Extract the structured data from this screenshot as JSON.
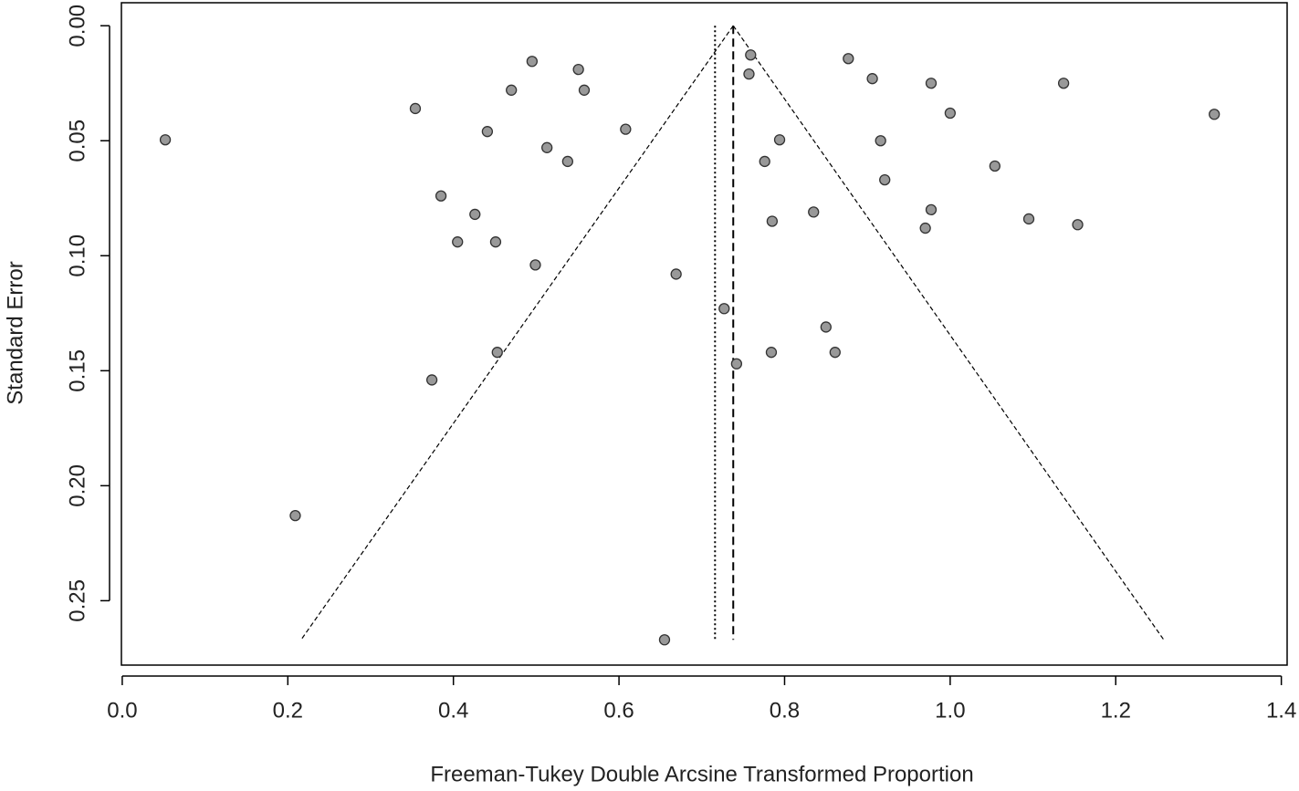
{
  "chart_data": {
    "type": "scatter",
    "x_label": "Freeman-Tukey Double Arcsine Transformed Proportion",
    "y_label": "Standard Error",
    "xlim": [
      -0.001,
      1.407
    ],
    "ylim": [
      -0.01,
      0.278
    ],
    "y_reversed": true,
    "xticks": [
      {
        "value": 0,
        "label": "0.0"
      },
      {
        "value": 0.2,
        "label": "0.2"
      },
      {
        "value": 0.4,
        "label": "0.4"
      },
      {
        "value": 0.6,
        "label": "0.6"
      },
      {
        "value": 0.8,
        "label": "0.8"
      },
      {
        "value": 1,
        "label": "1.0"
      },
      {
        "value": 1.2,
        "label": "1.2"
      },
      {
        "value": 1.4,
        "label": "1.4"
      }
    ],
    "yticks": [
      {
        "value": 0,
        "label": "0.00"
      },
      {
        "value": 0.05,
        "label": "0.05"
      },
      {
        "value": 0.1,
        "label": "0.10"
      },
      {
        "value": 0.15,
        "label": "0.15"
      },
      {
        "value": 0.2,
        "label": "0.20"
      },
      {
        "value": 0.25,
        "label": "0.25"
      }
    ],
    "color": "#999999",
    "x": [
      0.052,
      0.209,
      0.354,
      0.385,
      0.374,
      0.405,
      0.426,
      0.441,
      0.451,
      0.453,
      0.47,
      0.495,
      0.499,
      0.513,
      0.538,
      0.551,
      0.558,
      0.608,
      0.669,
      0.655,
      0.727,
      0.742,
      0.759,
      0.757,
      0.776,
      0.785,
      0.784,
      0.794,
      0.835,
      0.85,
      0.861,
      0.877,
      0.906,
      0.916,
      0.921,
      0.97,
      0.977,
      0.977,
      1.0,
      1.054,
      1.095,
      1.137,
      1.154,
      1.319
    ],
    "values": [
      0.0496,
      0.213,
      0.036,
      0.074,
      0.154,
      0.094,
      0.082,
      0.046,
      0.094,
      0.142,
      0.028,
      0.0155,
      0.104,
      0.053,
      0.059,
      0.019,
      0.028,
      0.045,
      0.108,
      0.267,
      0.123,
      0.147,
      0.0127,
      0.021,
      0.059,
      0.085,
      0.142,
      0.0496,
      0.081,
      0.131,
      0.142,
      0.0143,
      0.023,
      0.05,
      0.067,
      0.088,
      0.025,
      0.08,
      0.038,
      0.061,
      0.084,
      0.025,
      0.0865,
      0.0385
    ],
    "reference_lines": [
      {
        "x": 0.716,
        "style": "dotted"
      },
      {
        "x": 0.738,
        "style": "dashed"
      }
    ],
    "funnel": {
      "apex_x": 0.738,
      "y_max": 0.267,
      "left_x": 0.216,
      "right_x": 1.258
    }
  }
}
